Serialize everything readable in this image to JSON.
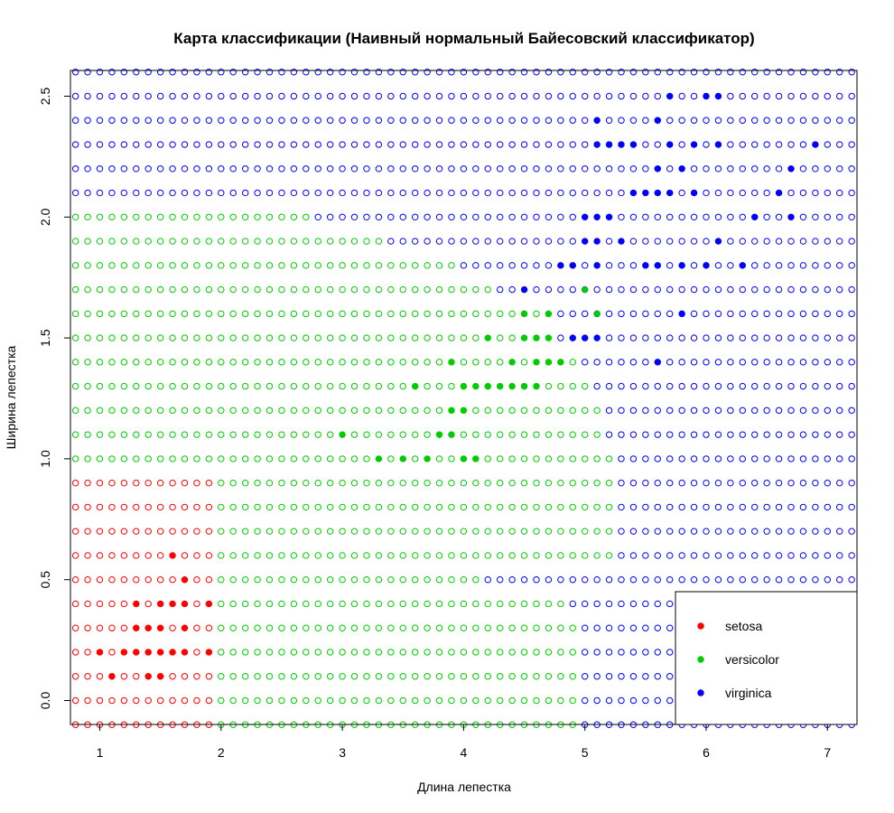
{
  "chart_data": {
    "type": "scatter",
    "title": "Карта классификации (Наивный нормальный Байесовский классификатор)",
    "xlabel": "Длина лепестка",
    "ylabel": "Ширина лепестка",
    "xlim": [
      0.8,
      7.25
    ],
    "ylim": [
      -0.1,
      2.6
    ],
    "xticks": [
      1,
      2,
      3,
      4,
      5,
      6,
      7
    ],
    "yticks": [
      0.0,
      0.5,
      1.0,
      1.5,
      2.0,
      2.5
    ],
    "grid": {
      "x_start": 0.8,
      "x_end": 7.2,
      "x_step": 0.1,
      "y_start": -0.1,
      "y_end": 2.6,
      "y_step": 0.1,
      "marker": "open circle",
      "setosa_region": "x < 2.0 and y <= 0.9",
      "versicolor_region_bounds": [
        {
          "y": -0.1,
          "x_max": 4.9
        },
        {
          "y": 0.0,
          "x_max": 4.9
        },
        {
          "y": 0.1,
          "x_max": 4.9
        },
        {
          "y": 0.2,
          "x_max": 4.9
        },
        {
          "y": 0.3,
          "x_max": 4.9
        },
        {
          "y": 0.4,
          "x_max": 4.8
        },
        {
          "y": 0.5,
          "x_max": 4.1
        },
        {
          "y": 0.6,
          "x_max": 5.2
        },
        {
          "y": 0.7,
          "x_max": 5.2
        },
        {
          "y": 0.8,
          "x_max": 5.2
        },
        {
          "y": 0.9,
          "x_max": 5.2
        },
        {
          "y": 1.0,
          "x_max": 5.2
        },
        {
          "y": 1.1,
          "x_max": 5.1
        },
        {
          "y": 1.2,
          "x_max": 5.1
        },
        {
          "y": 1.3,
          "x_max": 5.0
        },
        {
          "y": 1.4,
          "x_max": 4.9
        },
        {
          "y": 1.5,
          "x_max": 4.7
        },
        {
          "y": 1.6,
          "x_max": 4.7
        },
        {
          "y": 1.7,
          "x_max": 4.2
        },
        {
          "y": 1.8,
          "x_max": 3.9
        },
        {
          "y": 1.9,
          "x_max": 3.3
        },
        {
          "y": 2.0,
          "x_max": 2.7
        },
        {
          "y": 2.1,
          "x_max": 0.7
        },
        {
          "y": 2.2,
          "x_max": 0.7
        },
        {
          "y": 2.3,
          "x_max": 0.7
        },
        {
          "y": 2.4,
          "x_max": 0.7
        },
        {
          "y": 2.5,
          "x_max": 0.7
        },
        {
          "y": 2.6,
          "x_max": 0.7
        }
      ]
    },
    "series": [
      {
        "name": "setosa",
        "color": "#ff0000",
        "points": [
          [
            1.0,
            0.2
          ],
          [
            1.1,
            0.1
          ],
          [
            1.2,
            0.2
          ],
          [
            1.3,
            0.2
          ],
          [
            1.3,
            0.3
          ],
          [
            1.3,
            0.4
          ],
          [
            1.4,
            0.1
          ],
          [
            1.4,
            0.2
          ],
          [
            1.4,
            0.3
          ],
          [
            1.5,
            0.1
          ],
          [
            1.5,
            0.2
          ],
          [
            1.5,
            0.3
          ],
          [
            1.5,
            0.4
          ],
          [
            1.6,
            0.2
          ],
          [
            1.6,
            0.4
          ],
          [
            1.6,
            0.6
          ],
          [
            1.7,
            0.2
          ],
          [
            1.7,
            0.3
          ],
          [
            1.7,
            0.4
          ],
          [
            1.7,
            0.5
          ],
          [
            1.9,
            0.2
          ],
          [
            1.9,
            0.4
          ]
        ]
      },
      {
        "name": "versicolor",
        "color": "#00cc00",
        "points": [
          [
            3.0,
            1.1
          ],
          [
            3.3,
            1.0
          ],
          [
            3.5,
            1.0
          ],
          [
            3.6,
            1.3
          ],
          [
            3.7,
            1.0
          ],
          [
            3.8,
            1.1
          ],
          [
            3.9,
            1.1
          ],
          [
            3.9,
            1.2
          ],
          [
            3.9,
            1.4
          ],
          [
            4.0,
            1.0
          ],
          [
            4.0,
            1.2
          ],
          [
            4.0,
            1.3
          ],
          [
            4.1,
            1.0
          ],
          [
            4.1,
            1.3
          ],
          [
            4.2,
            1.3
          ],
          [
            4.2,
            1.5
          ],
          [
            4.3,
            1.3
          ],
          [
            4.4,
            1.3
          ],
          [
            4.4,
            1.4
          ],
          [
            4.5,
            1.3
          ],
          [
            4.5,
            1.5
          ],
          [
            4.5,
            1.6
          ],
          [
            4.6,
            1.3
          ],
          [
            4.6,
            1.4
          ],
          [
            4.6,
            1.5
          ],
          [
            4.7,
            1.4
          ],
          [
            4.7,
            1.5
          ],
          [
            4.7,
            1.6
          ],
          [
            4.8,
            1.4
          ],
          [
            5.0,
            1.7
          ],
          [
            5.1,
            1.6
          ]
        ]
      },
      {
        "name": "virginica",
        "color": "#0000ff",
        "points": [
          [
            4.5,
            1.7
          ],
          [
            4.8,
            1.8
          ],
          [
            4.9,
            1.5
          ],
          [
            4.9,
            1.8
          ],
          [
            5.0,
            1.5
          ],
          [
            5.0,
            1.9
          ],
          [
            5.0,
            2.0
          ],
          [
            5.1,
            1.5
          ],
          [
            5.1,
            1.8
          ],
          [
            5.1,
            1.9
          ],
          [
            5.1,
            2.0
          ],
          [
            5.1,
            2.3
          ],
          [
            5.1,
            2.4
          ],
          [
            5.2,
            2.0
          ],
          [
            5.2,
            2.3
          ],
          [
            5.3,
            1.9
          ],
          [
            5.3,
            2.3
          ],
          [
            5.4,
            2.1
          ],
          [
            5.4,
            2.3
          ],
          [
            5.5,
            1.8
          ],
          [
            5.5,
            2.1
          ],
          [
            5.6,
            1.4
          ],
          [
            5.6,
            1.8
          ],
          [
            5.6,
            2.1
          ],
          [
            5.6,
            2.2
          ],
          [
            5.6,
            2.4
          ],
          [
            5.7,
            2.1
          ],
          [
            5.7,
            2.3
          ],
          [
            5.7,
            2.5
          ],
          [
            5.8,
            1.6
          ],
          [
            5.8,
            1.8
          ],
          [
            5.8,
            2.2
          ],
          [
            5.9,
            2.1
          ],
          [
            5.9,
            2.3
          ],
          [
            6.0,
            1.8
          ],
          [
            6.0,
            2.5
          ],
          [
            6.1,
            1.9
          ],
          [
            6.1,
            2.3
          ],
          [
            6.1,
            2.5
          ],
          [
            6.3,
            1.8
          ],
          [
            6.4,
            2.0
          ],
          [
            6.6,
            2.1
          ],
          [
            6.7,
            2.0
          ],
          [
            6.7,
            2.2
          ],
          [
            6.9,
            2.3
          ]
        ]
      }
    ],
    "legend": {
      "position": "bottom-right",
      "entries": [
        "setosa",
        "versicolor",
        "virginica"
      ]
    }
  }
}
